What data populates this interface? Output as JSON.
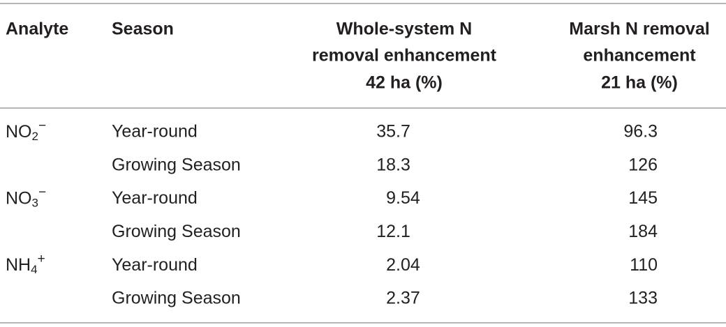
{
  "table": {
    "header": {
      "analyte": "Analyte",
      "season": "Season",
      "whole": [
        "Whole-system N",
        "removal enhancement",
        "42 ha (%)"
      ],
      "marsh": [
        "Marsh N removal",
        "enhancement",
        "21 ha (%)"
      ]
    },
    "groups": [
      {
        "analyte": {
          "base": "NO",
          "sub": "2",
          "sup": "−"
        },
        "rows": [
          {
            "season": "Year-round",
            "whole": "35.7",
            "marsh": "96.3"
          },
          {
            "season": "Growing Season",
            "whole": "18.3",
            "marsh": "126"
          }
        ]
      },
      {
        "analyte": {
          "base": "NO",
          "sub": "3",
          "sup": "−"
        },
        "rows": [
          {
            "season": "Year-round",
            "whole": "9.54",
            "marsh": "145"
          },
          {
            "season": "Growing Season",
            "whole": "12.1",
            "marsh": "184"
          }
        ]
      },
      {
        "analyte": {
          "base": "NH",
          "sub": "4",
          "sup": "+"
        },
        "rows": [
          {
            "season": "Year-round",
            "whole": "2.04",
            "marsh": "110"
          },
          {
            "season": "Growing Season",
            "whole": "2.37",
            "marsh": "133"
          }
        ]
      }
    ]
  }
}
